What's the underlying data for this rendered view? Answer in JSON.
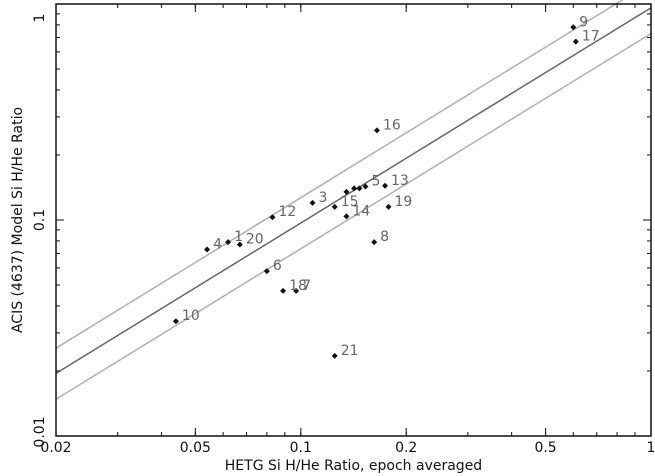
{
  "chart_data": {
    "type": "scatter",
    "xscale": "log",
    "yscale": "log",
    "xlim": [
      0.02,
      1
    ],
    "ylim": [
      0.01,
      1
    ],
    "xlabel": "HETG Si H/He Ratio, epoch averaged",
    "ylabel": "ACIS (4637) Model Si H/He Ratio",
    "xticks": [
      {
        "value": 0.02,
        "label": "0.02"
      },
      {
        "value": 0.05,
        "label": "0.05"
      },
      {
        "value": 0.1,
        "label": "0.1"
      },
      {
        "value": 0.2,
        "label": "0.2"
      },
      {
        "value": 0.5,
        "label": "0.5"
      },
      {
        "value": 1,
        "label": "1"
      }
    ],
    "yticks": [
      {
        "value": 0.01,
        "label": "0.01"
      },
      {
        "value": 0.1,
        "label": "0.1"
      },
      {
        "value": 1,
        "label": "1"
      }
    ],
    "grid": false,
    "reference_lines": [
      {
        "role": "fit",
        "color": "#666666",
        "points": [
          [
            0.02,
            0.0195
          ],
          [
            1,
            0.96
          ]
        ]
      },
      {
        "role": "upper",
        "color": "#b0b0b0",
        "points": [
          [
            0.02,
            0.0255
          ],
          [
            1,
            1.26
          ]
        ]
      },
      {
        "role": "lower",
        "color": "#b0b0b0",
        "points": [
          [
            0.02,
            0.0148
          ],
          [
            1,
            0.73
          ]
        ]
      }
    ],
    "points": [
      {
        "label": "1",
        "x": 0.062,
        "y": 0.079
      },
      {
        "label": "3",
        "x": 0.108,
        "y": 0.12
      },
      {
        "label": "4",
        "x": 0.054,
        "y": 0.073
      },
      {
        "label": "5",
        "x": 0.153,
        "y": 0.143
      },
      {
        "label": "6",
        "x": 0.08,
        "y": 0.058
      },
      {
        "label": "7",
        "x": 0.097,
        "y": 0.047
      },
      {
        "label": "8",
        "x": 0.162,
        "y": 0.079
      },
      {
        "label": "9",
        "x": 0.6,
        "y": 0.78
      },
      {
        "label": "10",
        "x": 0.044,
        "y": 0.034
      },
      {
        "label": "12",
        "x": 0.083,
        "y": 0.103
      },
      {
        "label": "13",
        "x": 0.174,
        "y": 0.144
      },
      {
        "label": "14",
        "x": 0.135,
        "y": 0.104
      },
      {
        "label": "15",
        "x": 0.125,
        "y": 0.115
      },
      {
        "label": "16",
        "x": 0.165,
        "y": 0.26
      },
      {
        "label": "17",
        "x": 0.61,
        "y": 0.67
      },
      {
        "label": "18",
        "x": 0.089,
        "y": 0.047
      },
      {
        "label": "19",
        "x": 0.178,
        "y": 0.115
      },
      {
        "label": "20",
        "x": 0.067,
        "y": 0.077
      },
      {
        "label": "21",
        "x": 0.125,
        "y": 0.0235
      },
      {
        "label": "",
        "x": 0.135,
        "y": 0.135
      },
      {
        "label": "",
        "x": 0.142,
        "y": 0.14
      },
      {
        "label": "",
        "x": 0.147,
        "y": 0.14
      }
    ],
    "colors": {
      "marker": "#111111",
      "label": "#666666",
      "axis": "#111111"
    }
  }
}
